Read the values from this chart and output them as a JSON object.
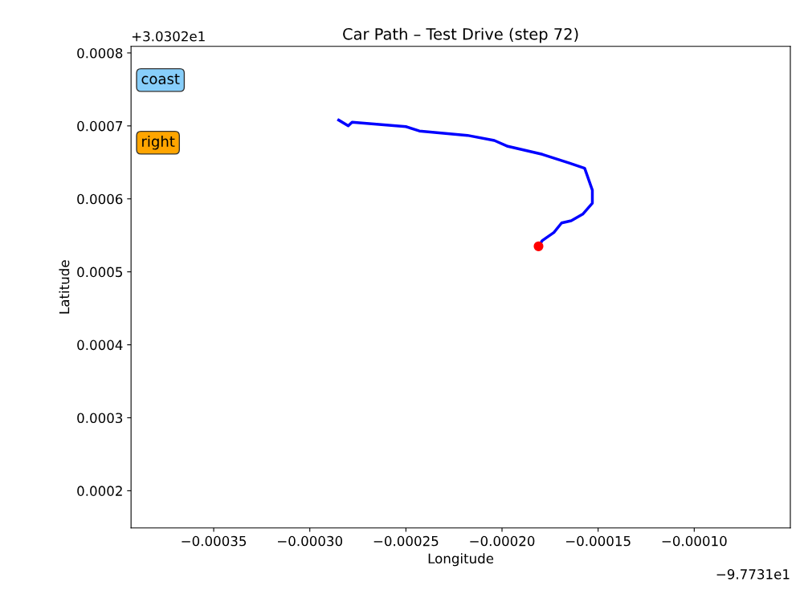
{
  "chart_data": {
    "type": "line",
    "title": "Car Path – Test Drive (step 72)",
    "xlabel": "Longitude",
    "ylabel": "Latitude",
    "series": [
      {
        "color": "#0000ff",
        "x": [
          -0.000285,
          -0.00028,
          -0.000278,
          -0.00025,
          -0.000243,
          -0.000218,
          -0.000204,
          -0.000197,
          -0.000179,
          -0.000165,
          -0.000157,
          -0.000153,
          -0.000153,
          -0.000158,
          -0.000164,
          -0.000169,
          -0.000173,
          -0.000179,
          -0.000181
        ],
        "values": [
          0.000708,
          0.0007,
          0.000705,
          0.000699,
          0.000693,
          0.000687,
          0.00068,
          0.000672,
          0.000661,
          0.000649,
          0.000642,
          0.000612,
          0.000594,
          0.000579,
          0.00057,
          0.000567,
          0.000554,
          0.000543,
          0.000535
        ]
      },
      {
        "type": "scatter",
        "color": "#ff0000",
        "x": [
          -0.000181
        ],
        "values": [
          0.000535
        ]
      }
    ],
    "xlim": [
      -0.000393,
      -5e-05
    ],
    "ylim": [
      0.000149,
      0.000809
    ],
    "xticks": [
      {
        "value": -0.00035,
        "label": "−0.00035"
      },
      {
        "value": -0.0003,
        "label": "−0.00030"
      },
      {
        "value": -0.00025,
        "label": "−0.00025"
      },
      {
        "value": -0.0002,
        "label": "−0.00020"
      },
      {
        "value": -0.00015,
        "label": "−0.00015"
      },
      {
        "value": -0.0001,
        "label": "−0.00010"
      }
    ],
    "yticks": [
      {
        "value": 0.0002,
        "label": "0.0002"
      },
      {
        "value": 0.0003,
        "label": "0.0003"
      },
      {
        "value": 0.0004,
        "label": "0.0004"
      },
      {
        "value": 0.0005,
        "label": "0.0005"
      },
      {
        "value": 0.0006,
        "label": "0.0006"
      },
      {
        "value": 0.0007,
        "label": "0.0007"
      },
      {
        "value": 0.0008,
        "label": "0.0008"
      }
    ],
    "annotations": [
      "+3.0302e1",
      "−9.7731e1",
      "coast",
      "right"
    ],
    "grid": false,
    "legend": false
  }
}
